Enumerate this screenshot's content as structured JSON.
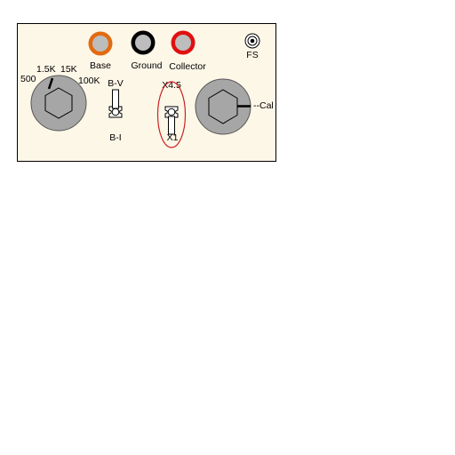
{
  "colors": {
    "panel_bg": "#fdf7e8",
    "base_ring": "#e26a10",
    "ground_ring": "#000000",
    "collector_ring": "#e01010",
    "jack_center": "#bdbdbd",
    "knob_gray": "#a6a6a6",
    "highlight_ellipse": "#cc2222"
  },
  "jacks": {
    "base_label": "Base",
    "ground_label": "Ground",
    "collector_label": "Collector",
    "fs_label": "FS"
  },
  "range_knob": {
    "label_500": "500",
    "label_1_5k": "1.5K",
    "label_15k": "15K",
    "label_100k": "100K"
  },
  "mode_switch": {
    "label_top": "B-V",
    "label_bottom": "B-I",
    "position": "up"
  },
  "scale_switch": {
    "label_top": "X4.5",
    "label_bottom": "X1",
    "position": "down",
    "highlighted": true
  },
  "cal_knob": {
    "label": "--Cal"
  }
}
